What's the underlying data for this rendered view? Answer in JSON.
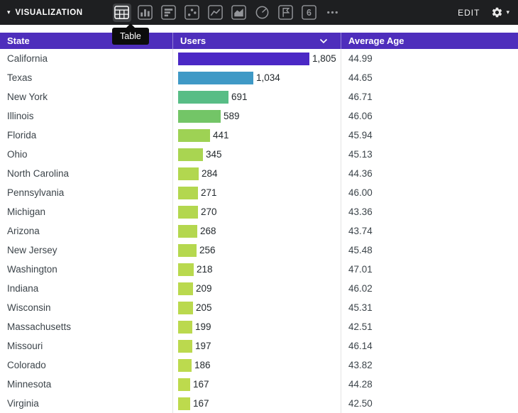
{
  "toolbar": {
    "visualization_label": "VISUALIZATION",
    "edit_label": "EDIT",
    "tooltip": "Table",
    "icons": [
      {
        "name": "table-icon",
        "selected": true
      },
      {
        "name": "column-chart-icon",
        "selected": false
      },
      {
        "name": "bar-chart-icon",
        "selected": false
      },
      {
        "name": "scatter-chart-icon",
        "selected": false
      },
      {
        "name": "line-chart-icon",
        "selected": false
      },
      {
        "name": "area-chart-icon",
        "selected": false
      },
      {
        "name": "pie-chart-icon",
        "selected": false
      },
      {
        "name": "map-chart-icon",
        "selected": false
      },
      {
        "name": "single-value-icon",
        "selected": false,
        "glyph_text": "6"
      },
      {
        "name": "more-icon",
        "selected": false
      }
    ]
  },
  "colors": {
    "toolbar_bg": "#1e1f21",
    "header_bg": "#4e2ebc"
  },
  "table": {
    "columns": [
      "State",
      "Users",
      "Average Age"
    ],
    "max_users": 1805,
    "rows": [
      {
        "state": "California",
        "users": "1,805",
        "users_value": 1805,
        "avg_age": "44.99",
        "bar_color": "#4b28c5"
      },
      {
        "state": "Texas",
        "users": "1,034",
        "users_value": 1034,
        "avg_age": "44.65",
        "bar_color": "#3f99c6"
      },
      {
        "state": "New York",
        "users": "691",
        "users_value": 691,
        "avg_age": "46.71",
        "bar_color": "#58bd86"
      },
      {
        "state": "Illinois",
        "users": "589",
        "users_value": 589,
        "avg_age": "46.06",
        "bar_color": "#73c567"
      },
      {
        "state": "Florida",
        "users": "441",
        "users_value": 441,
        "avg_age": "45.94",
        "bar_color": "#9ed254"
      },
      {
        "state": "Ohio",
        "users": "345",
        "users_value": 345,
        "avg_age": "45.13",
        "bar_color": "#a9d551"
      },
      {
        "state": "North Carolina",
        "users": "284",
        "users_value": 284,
        "avg_age": "44.36",
        "bar_color": "#b2d74f"
      },
      {
        "state": "Pennsylvania",
        "users": "271",
        "users_value": 271,
        "avg_age": "46.00",
        "bar_color": "#b3d74f"
      },
      {
        "state": "Michigan",
        "users": "270",
        "users_value": 270,
        "avg_age": "43.36",
        "bar_color": "#b3d74f"
      },
      {
        "state": "Arizona",
        "users": "268",
        "users_value": 268,
        "avg_age": "43.74",
        "bar_color": "#b4d74f"
      },
      {
        "state": "New Jersey",
        "users": "256",
        "users_value": 256,
        "avg_age": "45.48",
        "bar_color": "#b5d84f"
      },
      {
        "state": "Washington",
        "users": "218",
        "users_value": 218,
        "avg_age": "47.01",
        "bar_color": "#b9d94e"
      },
      {
        "state": "Indiana",
        "users": "209",
        "users_value": 209,
        "avg_age": "46.02",
        "bar_color": "#bad94e"
      },
      {
        "state": "Wisconsin",
        "users": "205",
        "users_value": 205,
        "avg_age": "45.31",
        "bar_color": "#bad94e"
      },
      {
        "state": "Massachusetts",
        "users": "199",
        "users_value": 199,
        "avg_age": "42.51",
        "bar_color": "#bbd94e"
      },
      {
        "state": "Missouri",
        "users": "197",
        "users_value": 197,
        "avg_age": "46.14",
        "bar_color": "#bbd94e"
      },
      {
        "state": "Colorado",
        "users": "186",
        "users_value": 186,
        "avg_age": "43.82",
        "bar_color": "#bcda4e"
      },
      {
        "state": "Minnesota",
        "users": "167",
        "users_value": 167,
        "avg_age": "44.28",
        "bar_color": "#bdda4d"
      },
      {
        "state": "Virginia",
        "users": "167",
        "users_value": 167,
        "avg_age": "42.50",
        "bar_color": "#bdda4d"
      }
    ]
  }
}
